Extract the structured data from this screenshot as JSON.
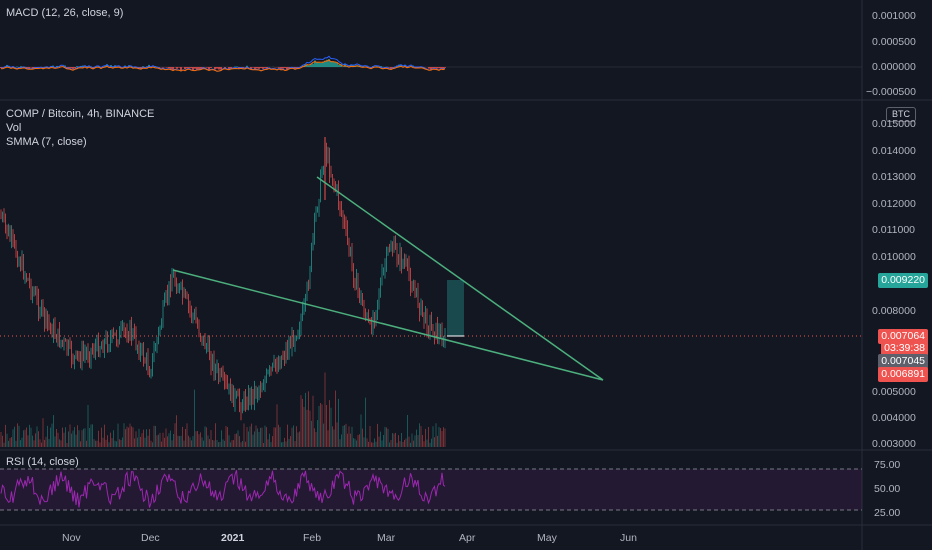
{
  "macd": {
    "title": "MACD (12, 26, close, 9)",
    "axis": [
      "0.001000",
      "0.000500",
      "0.000000",
      "−0.000500"
    ]
  },
  "main": {
    "symbol": "COMP / Bitcoin, 4h, BINANCE",
    "vol_label": "Vol",
    "smma_label": "SMMA (7, close)",
    "currency": "BTC",
    "axis": [
      "0.015000",
      "0.014000",
      "0.013000",
      "0.012000",
      "0.011000",
      "0.010000",
      "0.008000",
      "0.005000",
      "0.004000",
      "0.003000"
    ],
    "price_tags": {
      "target": "0.009220",
      "current": "0.007064",
      "countdown": "03:39:38",
      "smma": "0.007045",
      "low": "0.006891"
    },
    "colors": {
      "up": "#26a69a",
      "down": "#ef5350",
      "trendline": "#4caf7d",
      "smma": "#787b86"
    }
  },
  "rsi": {
    "title": "RSI (14, close)",
    "axis": [
      "75.00",
      "50.00",
      "25.00"
    ],
    "color": "#9c27b0"
  },
  "time_axis": [
    "Nov",
    "Dec",
    "2021",
    "Feb",
    "Mar",
    "Apr",
    "May",
    "Jun"
  ]
}
